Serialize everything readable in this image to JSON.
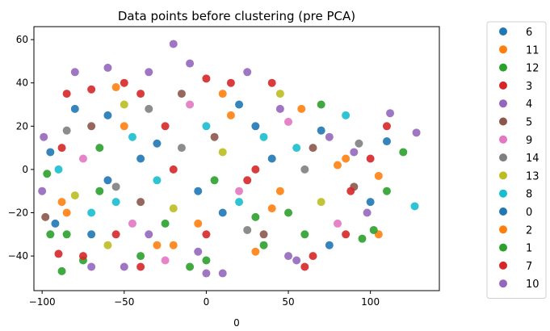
{
  "chart_data": {
    "type": "scatter",
    "title": "Data points before clustering (pre PCA)",
    "xlabel": "0",
    "ylabel": "",
    "xlim": [
      -105,
      142
    ],
    "ylim": [
      -56,
      66
    ],
    "xticks": [
      -100,
      -50,
      0,
      50,
      100
    ],
    "yticks": [
      -40,
      -20,
      0,
      20,
      40,
      60
    ],
    "grid": false,
    "legend": {
      "placement": "outside-right",
      "entries": [
        {
          "name": "6",
          "color": "#1f77b4"
        },
        {
          "name": "11",
          "color": "#ff7f0e"
        },
        {
          "name": "12",
          "color": "#2ca02c"
        },
        {
          "name": "3",
          "color": "#d62728"
        },
        {
          "name": "4",
          "color": "#9467bd"
        },
        {
          "name": "5",
          "color": "#8c564b"
        },
        {
          "name": "9",
          "color": "#e377c2"
        },
        {
          "name": "14",
          "color": "#7f7f7f"
        },
        {
          "name": "13",
          "color": "#bcbd22"
        },
        {
          "name": "8",
          "color": "#17becf"
        },
        {
          "name": "0",
          "color": "#1f77b4"
        },
        {
          "name": "2",
          "color": "#ff7f0e"
        },
        {
          "name": "1",
          "color": "#2ca02c"
        },
        {
          "name": "7",
          "color": "#d62728"
        },
        {
          "name": "10",
          "color": "#9467bd"
        }
      ]
    },
    "series": [
      {
        "name": "6",
        "color": "#1f77b4",
        "points": [
          [
            -95,
            8
          ],
          [
            -80,
            28
          ],
          [
            -60,
            -5
          ],
          [
            -30,
            12
          ],
          [
            10,
            -20
          ],
          [
            40,
            5
          ],
          [
            70,
            18
          ],
          [
            110,
            13
          ],
          [
            -70,
            -30
          ],
          [
            20,
            30
          ]
        ]
      },
      {
        "name": "11",
        "color": "#ff7f0e",
        "points": [
          [
            -88,
            -15
          ],
          [
            -50,
            20
          ],
          [
            -20,
            -35
          ],
          [
            15,
            25
          ],
          [
            45,
            -10
          ],
          [
            80,
            2
          ],
          [
            105,
            -3
          ],
          [
            58,
            28
          ],
          [
            -5,
            -25
          ],
          [
            30,
            -38
          ]
        ]
      },
      {
        "name": "12",
        "color": "#2ca02c",
        "points": [
          [
            -97,
            -2
          ],
          [
            -85,
            -30
          ],
          [
            -75,
            -42
          ],
          [
            -88,
            -47
          ],
          [
            -40,
            -40
          ],
          [
            0,
            -42
          ],
          [
            60,
            -30
          ],
          [
            95,
            -32
          ],
          [
            110,
            -10
          ],
          [
            120,
            8
          ],
          [
            -65,
            10
          ],
          [
            30,
            -22
          ]
        ]
      },
      {
        "name": "3",
        "color": "#d62728",
        "points": [
          [
            -90,
            -39
          ],
          [
            -85,
            35
          ],
          [
            -70,
            37
          ],
          [
            -50,
            40
          ],
          [
            -40,
            -45
          ],
          [
            0,
            42
          ],
          [
            40,
            40
          ],
          [
            60,
            -45
          ],
          [
            85,
            -30
          ],
          [
            100,
            5
          ],
          [
            110,
            20
          ],
          [
            -20,
            0
          ],
          [
            25,
            -5
          ]
        ]
      },
      {
        "name": "4",
        "color": "#9467bd",
        "points": [
          [
            -100,
            -10
          ],
          [
            -60,
            47
          ],
          [
            -20,
            58
          ],
          [
            -10,
            49
          ],
          [
            -80,
            45
          ],
          [
            0,
            -48
          ],
          [
            50,
            -40
          ],
          [
            75,
            15
          ],
          [
            98,
            -20
          ],
          [
            112,
            26
          ],
          [
            128,
            17
          ],
          [
            -35,
            -30
          ]
        ]
      },
      {
        "name": "5",
        "color": "#8c564b",
        "points": [
          [
            -98,
            -22
          ],
          [
            -70,
            20
          ],
          [
            -40,
            -15
          ],
          [
            5,
            15
          ],
          [
            35,
            -30
          ],
          [
            65,
            10
          ],
          [
            90,
            -8
          ],
          [
            -15,
            35
          ]
        ]
      },
      {
        "name": "9",
        "color": "#e377c2",
        "points": [
          [
            -75,
            5
          ],
          [
            -45,
            -25
          ],
          [
            -10,
            30
          ],
          [
            20,
            -10
          ],
          [
            50,
            22
          ],
          [
            80,
            -25
          ],
          [
            -25,
            -42
          ]
        ]
      },
      {
        "name": "14",
        "color": "#7f7f7f",
        "points": [
          [
            -85,
            18
          ],
          [
            -55,
            -8
          ],
          [
            -15,
            10
          ],
          [
            25,
            -28
          ],
          [
            60,
            0
          ],
          [
            93,
            12
          ],
          [
            -35,
            28
          ]
        ]
      },
      {
        "name": "13",
        "color": "#bcbd22",
        "points": [
          [
            -80,
            -12
          ],
          [
            -50,
            30
          ],
          [
            -20,
            -18
          ],
          [
            10,
            8
          ],
          [
            45,
            35
          ],
          [
            70,
            -15
          ],
          [
            -60,
            -35
          ]
        ]
      },
      {
        "name": "8",
        "color": "#17becf",
        "points": [
          [
            -90,
            0
          ],
          [
            -70,
            -20
          ],
          [
            -45,
            15
          ],
          [
            -30,
            -5
          ],
          [
            0,
            20
          ],
          [
            20,
            -15
          ],
          [
            55,
            10
          ],
          [
            85,
            25
          ],
          [
            127,
            -17
          ],
          [
            -55,
            -15
          ],
          [
            35,
            15
          ]
        ]
      },
      {
        "name": "0",
        "color": "#1f77b4",
        "points": [
          [
            -92,
            -25
          ],
          [
            -60,
            25
          ],
          [
            -5,
            -10
          ],
          [
            30,
            20
          ],
          [
            75,
            -35
          ],
          [
            100,
            -15
          ],
          [
            -40,
            5
          ]
        ]
      },
      {
        "name": "2",
        "color": "#ff7f0e",
        "points": [
          [
            -85,
            -20
          ],
          [
            -30,
            -35
          ],
          [
            10,
            35
          ],
          [
            40,
            -18
          ],
          [
            85,
            5
          ],
          [
            105,
            -30
          ],
          [
            -55,
            38
          ]
        ]
      },
      {
        "name": "1",
        "color": "#2ca02c",
        "points": [
          [
            -95,
            -30
          ],
          [
            -65,
            -10
          ],
          [
            -25,
            -25
          ],
          [
            5,
            -5
          ],
          [
            35,
            -35
          ],
          [
            70,
            30
          ],
          [
            102,
            -28
          ],
          [
            -10,
            -45
          ],
          [
            50,
            -20
          ]
        ]
      },
      {
        "name": "7",
        "color": "#d62728",
        "points": [
          [
            -88,
            10
          ],
          [
            -55,
            -30
          ],
          [
            -25,
            20
          ],
          [
            0,
            -30
          ],
          [
            30,
            0
          ],
          [
            65,
            -40
          ],
          [
            88,
            -10
          ],
          [
            -40,
            35
          ],
          [
            15,
            40
          ],
          [
            -75,
            -40
          ]
        ]
      },
      {
        "name": "10",
        "color": "#9467bd",
        "points": [
          [
            -99,
            15
          ],
          [
            -70,
            -45
          ],
          [
            -35,
            45
          ],
          [
            -5,
            -38
          ],
          [
            25,
            45
          ],
          [
            55,
            -42
          ],
          [
            90,
            8
          ],
          [
            -50,
            -45
          ],
          [
            10,
            -48
          ],
          [
            45,
            28
          ]
        ]
      }
    ]
  }
}
